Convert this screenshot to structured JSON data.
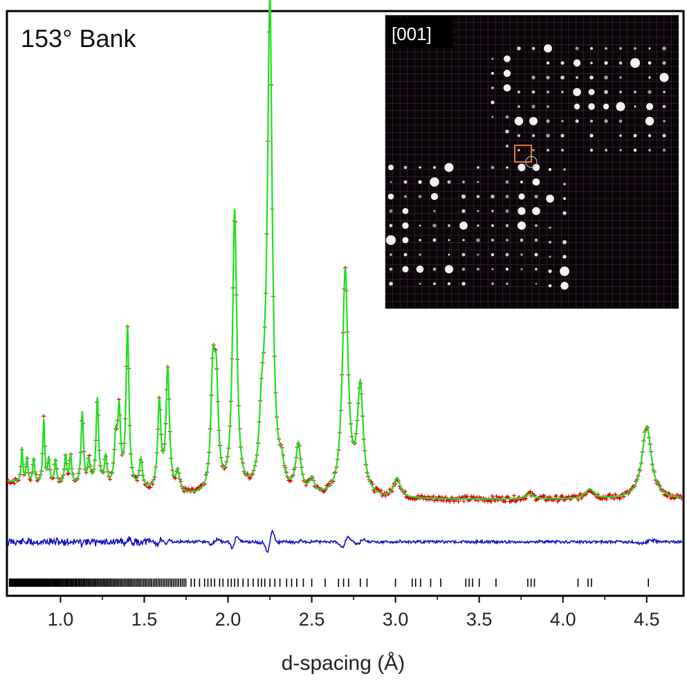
{
  "chart_data": {
    "type": "line",
    "title": "153° Bank",
    "xlabel": "d-spacing (Å)",
    "ylabel": "",
    "xlim": [
      0.68,
      4.72
    ],
    "x_ticks": [
      "1.0",
      "1.5",
      "2.0",
      "2.5",
      "3.0",
      "3.5",
      "4.0",
      "4.5"
    ],
    "x_tick_values": [
      1.0,
      1.5,
      2.0,
      2.5,
      3.0,
      3.5,
      4.0,
      4.5
    ],
    "background": 0.04,
    "peaks": [
      {
        "d": 0.77,
        "intensity": 0.07
      },
      {
        "d": 0.8,
        "intensity": 0.05
      },
      {
        "d": 0.84,
        "intensity": 0.05
      },
      {
        "d": 0.9,
        "intensity": 0.13
      },
      {
        "d": 0.93,
        "intensity": 0.05
      },
      {
        "d": 0.97,
        "intensity": 0.05
      },
      {
        "d": 1.03,
        "intensity": 0.06
      },
      {
        "d": 1.06,
        "intensity": 0.06
      },
      {
        "d": 1.13,
        "intensity": 0.15
      },
      {
        "d": 1.17,
        "intensity": 0.05
      },
      {
        "d": 1.22,
        "intensity": 0.18
      },
      {
        "d": 1.27,
        "intensity": 0.06
      },
      {
        "d": 1.33,
        "intensity": 0.09
      },
      {
        "d": 1.35,
        "intensity": 0.15
      },
      {
        "d": 1.4,
        "intensity": 0.33
      },
      {
        "d": 1.48,
        "intensity": 0.06
      },
      {
        "d": 1.59,
        "intensity": 0.18
      },
      {
        "d": 1.64,
        "intensity": 0.25
      },
      {
        "d": 1.7,
        "intensity": 0.04
      },
      {
        "d": 1.91,
        "intensity": 0.23
      },
      {
        "d": 1.93,
        "intensity": 0.2
      },
      {
        "d": 2.04,
        "intensity": 0.58
      },
      {
        "d": 2.2,
        "intensity": 0.11
      },
      {
        "d": 2.22,
        "intensity": 0.07
      },
      {
        "d": 2.25,
        "intensity": 1.0
      },
      {
        "d": 2.32,
        "intensity": 0.04
      },
      {
        "d": 2.42,
        "intensity": 0.1
      },
      {
        "d": 2.5,
        "intensity": 0.03
      },
      {
        "d": 2.7,
        "intensity": 0.46
      },
      {
        "d": 2.79,
        "intensity": 0.22
      },
      {
        "d": 3.01,
        "intensity": 0.04
      },
      {
        "d": 3.8,
        "intensity": 0.01
      },
      {
        "d": 4.16,
        "intensity": 0.02
      },
      {
        "d": 4.5,
        "intensity": 0.15
      }
    ],
    "reflection_ticks": [
      3.0,
      3.1,
      3.12,
      3.15,
      3.21,
      3.27,
      3.42,
      3.44,
      3.46,
      3.5,
      3.6,
      3.79,
      3.81,
      3.83,
      4.09,
      4.15,
      4.17,
      4.51
    ],
    "series": [
      {
        "role": "observed",
        "marker": "+",
        "color": "#d60000"
      },
      {
        "role": "calculated",
        "color": "#22dd22"
      },
      {
        "role": "difference",
        "color": "#1010c0"
      }
    ],
    "inset": {
      "label": "[001]",
      "background": "#0a0508",
      "grid_color": "#4a2a40",
      "box_color": "#e07a30"
    }
  }
}
